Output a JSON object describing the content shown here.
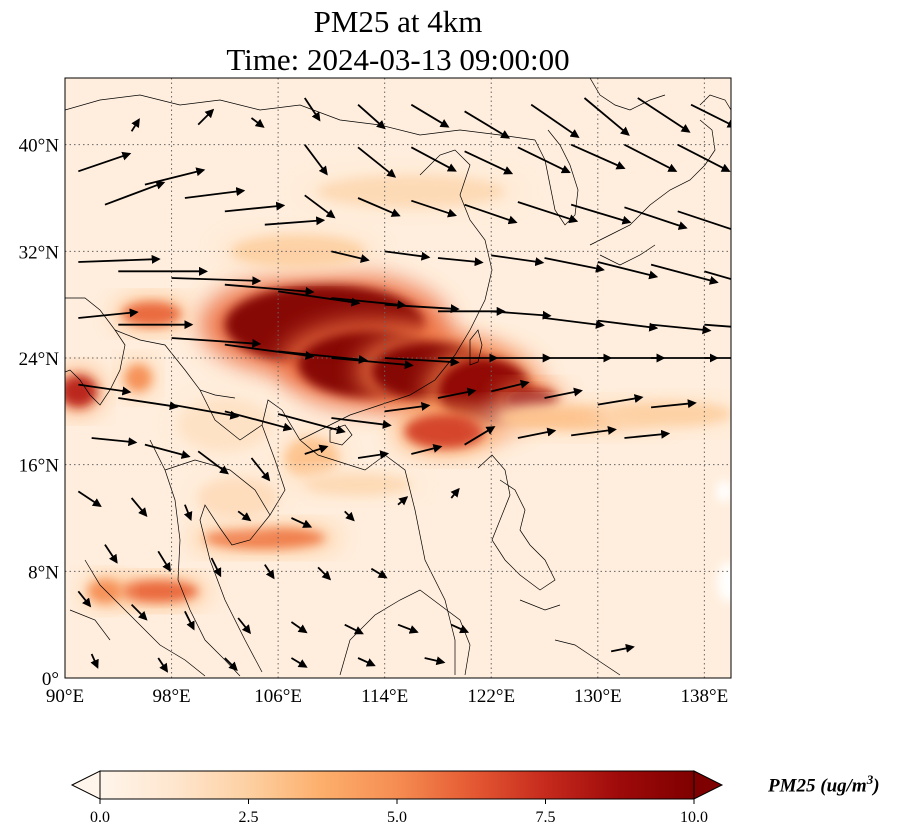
{
  "title": {
    "line1": "PM25 at 4km",
    "line2": "Time: 2024-03-13 09:00:00"
  },
  "map": {
    "extent": {
      "lon_min": 90,
      "lon_max": 140,
      "lat_min": 0,
      "lat_max": 45
    },
    "lat_ticks": [
      {
        "value": 40,
        "label": "40°N"
      },
      {
        "value": 32,
        "label": "32°N"
      },
      {
        "value": 24,
        "label": "24°N"
      },
      {
        "value": 16,
        "label": "16°N"
      },
      {
        "value": 8,
        "label": "8°N"
      },
      {
        "value": 0,
        "label": "0°"
      }
    ],
    "lon_ticks": [
      {
        "value": 90,
        "label": "90°E"
      },
      {
        "value": 98,
        "label": "98°E"
      },
      {
        "value": 106,
        "label": "106°E"
      },
      {
        "value": 114,
        "label": "114°E"
      },
      {
        "value": 122,
        "label": "122°E"
      },
      {
        "value": 130,
        "label": "130°E"
      },
      {
        "value": 138,
        "label": "138°E"
      }
    ],
    "gridlines": true
  },
  "colorbar": {
    "min": 0,
    "max": 10,
    "ticks": [
      {
        "value": 0,
        "label": "0.0"
      },
      {
        "value": 2.5,
        "label": "2.5"
      },
      {
        "value": 5,
        "label": "5.0"
      },
      {
        "value": 7.5,
        "label": "7.5"
      },
      {
        "value": 10,
        "label": "10.0"
      }
    ],
    "colors": [
      "#fff5eb",
      "#fee6ce",
      "#fdd0a2",
      "#fdae6b",
      "#f58d52",
      "#e55a33",
      "#c62a1d",
      "#9e0a0a",
      "#7f0000"
    ],
    "label_main": "PM25 (ug/m",
    "label_sup": "3",
    "label_end": ")"
  },
  "field": {
    "background_value": 0.6,
    "plumes": [
      {
        "lon": 109.5,
        "lat": 26.5,
        "rlon": 7.5,
        "rlat": 3.0,
        "v": 10.5
      },
      {
        "lon": 113.0,
        "lat": 23.5,
        "rlon": 5.5,
        "rlat": 2.5,
        "v": 10.5
      },
      {
        "lon": 117.5,
        "lat": 23.0,
        "rlon": 4.5,
        "rlat": 2.2,
        "v": 10.0
      },
      {
        "lon": 121.5,
        "lat": 21.5,
        "rlon": 3.5,
        "rlat": 2.5,
        "v": 9.5
      },
      {
        "lon": 125.0,
        "lat": 20.8,
        "rlon": 2.0,
        "rlat": 0.9,
        "v": 9.0
      },
      {
        "lon": 118.5,
        "lat": 18.5,
        "rlon": 3.0,
        "rlat": 1.3,
        "v": 7.0
      },
      {
        "lon": 128.5,
        "lat": 19.5,
        "rlon": 6.0,
        "rlat": 0.9,
        "v": 3.0
      },
      {
        "lon": 135.5,
        "lat": 19.8,
        "rlon": 4.5,
        "rlat": 0.9,
        "v": 2.5
      },
      {
        "lon": 96.5,
        "lat": 27.3,
        "rlon": 2.2,
        "rlat": 0.9,
        "v": 6.0
      },
      {
        "lon": 91.0,
        "lat": 21.5,
        "rlon": 1.4,
        "rlat": 1.2,
        "v": 8.0
      },
      {
        "lon": 95.5,
        "lat": 22.5,
        "rlon": 1.0,
        "rlat": 1.0,
        "v": 5.0
      },
      {
        "lon": 105.0,
        "lat": 10.5,
        "rlon": 4.5,
        "rlat": 0.8,
        "v": 5.5
      },
      {
        "lon": 97.0,
        "lat": 6.5,
        "rlon": 3.0,
        "rlat": 0.8,
        "v": 6.0
      },
      {
        "lon": 93.0,
        "lat": 6.5,
        "rlon": 1.3,
        "rlat": 0.9,
        "v": 5.0
      },
      {
        "lon": 107.5,
        "lat": 32.0,
        "rlon": 5.0,
        "rlat": 1.2,
        "v": 2.5
      },
      {
        "lon": 116.0,
        "lat": 36.5,
        "rlon": 7.0,
        "rlat": 1.2,
        "v": 2.0
      },
      {
        "lon": 108.5,
        "lat": 16.5,
        "rlon": 2.0,
        "rlat": 1.5,
        "v": 3.0
      },
      {
        "lon": 112.0,
        "lat": 14.5,
        "rlon": 4.0,
        "rlat": 0.8,
        "v": 2.0
      },
      {
        "lon": 102.0,
        "lat": 19.0,
        "rlon": 3.5,
        "rlat": 2.0,
        "v": 1.5
      },
      {
        "lon": 103.0,
        "lat": 13.5,
        "rlon": 3.0,
        "rlat": 1.5,
        "v": 1.8
      }
    ],
    "clean_spots": [
      {
        "lon": 139.8,
        "lat": 7.2,
        "rlon": 0.8,
        "rlat": 1.5
      },
      {
        "lon": 139.5,
        "lat": 14.0,
        "rlon": 0.6,
        "rlat": 0.8
      }
    ]
  },
  "wind": {
    "reference_scale": 0.5,
    "vectors": [
      [
        91,
        38,
        3.5,
        1.2
      ],
      [
        93,
        35.5,
        4,
        1.5
      ],
      [
        96,
        37,
        4,
        1
      ],
      [
        99,
        36,
        4,
        0.5
      ],
      [
        102,
        35,
        4,
        0.4
      ],
      [
        105,
        34,
        4,
        0.3
      ],
      [
        91,
        31.2,
        5.5,
        0.2
      ],
      [
        94,
        30.5,
        6,
        0
      ],
      [
        98,
        30,
        6,
        -0.2
      ],
      [
        102,
        29.5,
        6,
        -0.5
      ],
      [
        106,
        29,
        5.5,
        -0.8
      ],
      [
        110,
        28.5,
        5,
        -0.5
      ],
      [
        114,
        28,
        5,
        -0.3
      ],
      [
        118,
        27.5,
        4.5,
        0
      ],
      [
        122,
        27.5,
        4,
        -0.3
      ],
      [
        126,
        27,
        4,
        -0.5
      ],
      [
        130,
        26.8,
        4,
        -0.5
      ],
      [
        134,
        26.5,
        4,
        -0.4
      ],
      [
        138,
        26.5,
        4,
        -0.3
      ],
      [
        91,
        27,
        4,
        0.4
      ],
      [
        94,
        26.5,
        5,
        0
      ],
      [
        98,
        25.5,
        6,
        -0.4
      ],
      [
        102,
        25,
        6,
        -0.8
      ],
      [
        106,
        24.5,
        6,
        -0.6
      ],
      [
        110,
        24,
        5.5,
        -0.5
      ],
      [
        114,
        24,
        5,
        -0.3
      ],
      [
        118,
        24,
        4,
        0
      ],
      [
        122,
        24,
        4,
        0
      ],
      [
        126,
        24,
        4.5,
        0
      ],
      [
        130,
        24,
        4.5,
        0
      ],
      [
        134,
        24,
        4.5,
        0
      ],
      [
        138,
        24,
        4.5,
        0
      ],
      [
        91,
        22,
        3.5,
        -0.5
      ],
      [
        94,
        21,
        4,
        -0.6
      ],
      [
        98,
        20.5,
        4.5,
        -0.8
      ],
      [
        102,
        20,
        4.5,
        -1.2
      ],
      [
        106,
        19.8,
        4.5,
        -1.2
      ],
      [
        110,
        19.5,
        4,
        -0.5
      ],
      [
        114,
        20,
        3,
        0.4
      ],
      [
        118,
        21,
        2.5,
        0.5
      ],
      [
        122,
        21.5,
        2.5,
        0.6
      ],
      [
        126,
        21,
        2.5,
        0.5
      ],
      [
        130,
        20.5,
        3,
        0.5
      ],
      [
        134,
        20.3,
        3,
        0.3
      ],
      [
        92,
        18,
        3,
        -0.3
      ],
      [
        96,
        17.5,
        3,
        -0.8
      ],
      [
        100,
        17,
        2,
        -1.5
      ],
      [
        104,
        16.5,
        1.2,
        -1.5
      ],
      [
        108,
        16.8,
        1.5,
        0.5
      ],
      [
        112,
        16.5,
        2,
        0.3
      ],
      [
        116,
        16.8,
        2,
        0.5
      ],
      [
        120,
        17.5,
        2,
        1.2
      ],
      [
        124,
        18,
        2.5,
        0.5
      ],
      [
        128,
        18.2,
        3,
        0.4
      ],
      [
        132,
        18,
        3,
        0.3
      ],
      [
        91,
        14,
        1.5,
        -1
      ],
      [
        95,
        13.5,
        1,
        -1.2
      ],
      [
        99,
        13,
        0.4,
        -1
      ],
      [
        103,
        12.5,
        0.8,
        -0.6
      ],
      [
        107,
        12,
        1.3,
        -0.6
      ],
      [
        111,
        12.5,
        0.6,
        -0.6
      ],
      [
        115,
        13,
        0.6,
        0.5
      ],
      [
        119,
        13.5,
        0.5,
        0.6
      ],
      [
        93,
        10,
        0.8,
        -1.2
      ],
      [
        97,
        9.5,
        0.8,
        -1.3
      ],
      [
        101,
        9,
        0.6,
        -1.2
      ],
      [
        105,
        8.5,
        0.6,
        -0.9
      ],
      [
        109,
        8.3,
        0.8,
        -0.8
      ],
      [
        113,
        8.2,
        1,
        -0.6
      ],
      [
        91,
        6.5,
        0.8,
        -1
      ],
      [
        95,
        5.5,
        1,
        -1
      ],
      [
        99,
        5,
        0.6,
        -1.2
      ],
      [
        103,
        4.5,
        0.8,
        -1
      ],
      [
        107,
        4.2,
        1,
        -0.7
      ],
      [
        111,
        4,
        1.2,
        -0.6
      ],
      [
        115,
        4,
        1.3,
        -0.5
      ],
      [
        119,
        4,
        1.1,
        -0.5
      ],
      [
        92,
        1.8,
        0.4,
        -0.9
      ],
      [
        97,
        1.5,
        0.6,
        -0.9
      ],
      [
        102,
        1.5,
        0.8,
        -0.8
      ],
      [
        107,
        1.5,
        1,
        -0.6
      ],
      [
        112,
        1.5,
        1.1,
        -0.5
      ],
      [
        117,
        1.5,
        1.3,
        -0.3
      ],
      [
        131,
        2,
        1.5,
        0.3
      ],
      [
        108,
        43.5,
        1,
        -1.5
      ],
      [
        112,
        43,
        1.8,
        -1.6
      ],
      [
        116,
        43,
        2.5,
        -1.5
      ],
      [
        120,
        42.5,
        3,
        -1.8
      ],
      [
        125,
        43,
        3.2,
        -2.2
      ],
      [
        129,
        43.5,
        3,
        -2.5
      ],
      [
        133,
        43.5,
        3.5,
        -2.3
      ],
      [
        137,
        43,
        3,
        -1.5
      ],
      [
        108,
        40,
        1.5,
        -2
      ],
      [
        112,
        39.8,
        2.5,
        -2
      ],
      [
        116,
        39.8,
        3,
        -1.6
      ],
      [
        120,
        39.5,
        3.2,
        -1.5
      ],
      [
        124,
        39.8,
        3.5,
        -1.7
      ],
      [
        128,
        40,
        3.6,
        -1.6
      ],
      [
        132,
        40,
        3.5,
        -1.8
      ],
      [
        136,
        40,
        3.5,
        -1.8
      ],
      [
        108,
        36.2,
        2,
        -1.5
      ],
      [
        112,
        36,
        2.8,
        -1.2
      ],
      [
        116,
        35.8,
        3,
        -1
      ],
      [
        120,
        35.5,
        3.5,
        -1.2
      ],
      [
        124,
        35.7,
        4,
        -1.3
      ],
      [
        128,
        35.5,
        4,
        -1.2
      ],
      [
        132,
        35.3,
        4.2,
        -1.4
      ],
      [
        136,
        35,
        4.5,
        -1.5
      ],
      [
        110,
        32,
        2.5,
        -0.6
      ],
      [
        114,
        32,
        3,
        -0.4
      ],
      [
        118,
        31.5,
        3,
        -0.3
      ],
      [
        122,
        31.7,
        3.5,
        -0.5
      ],
      [
        126,
        31.5,
        4,
        -0.8
      ],
      [
        130,
        31.2,
        4,
        -1
      ],
      [
        134,
        31,
        4.5,
        -1.2
      ],
      [
        138,
        30.5,
        4.5,
        -1.3
      ],
      [
        95,
        41,
        0.5,
        0.8
      ],
      [
        100,
        41.5,
        1,
        1
      ],
      [
        104,
        42,
        0.8,
        -0.6
      ]
    ]
  }
}
